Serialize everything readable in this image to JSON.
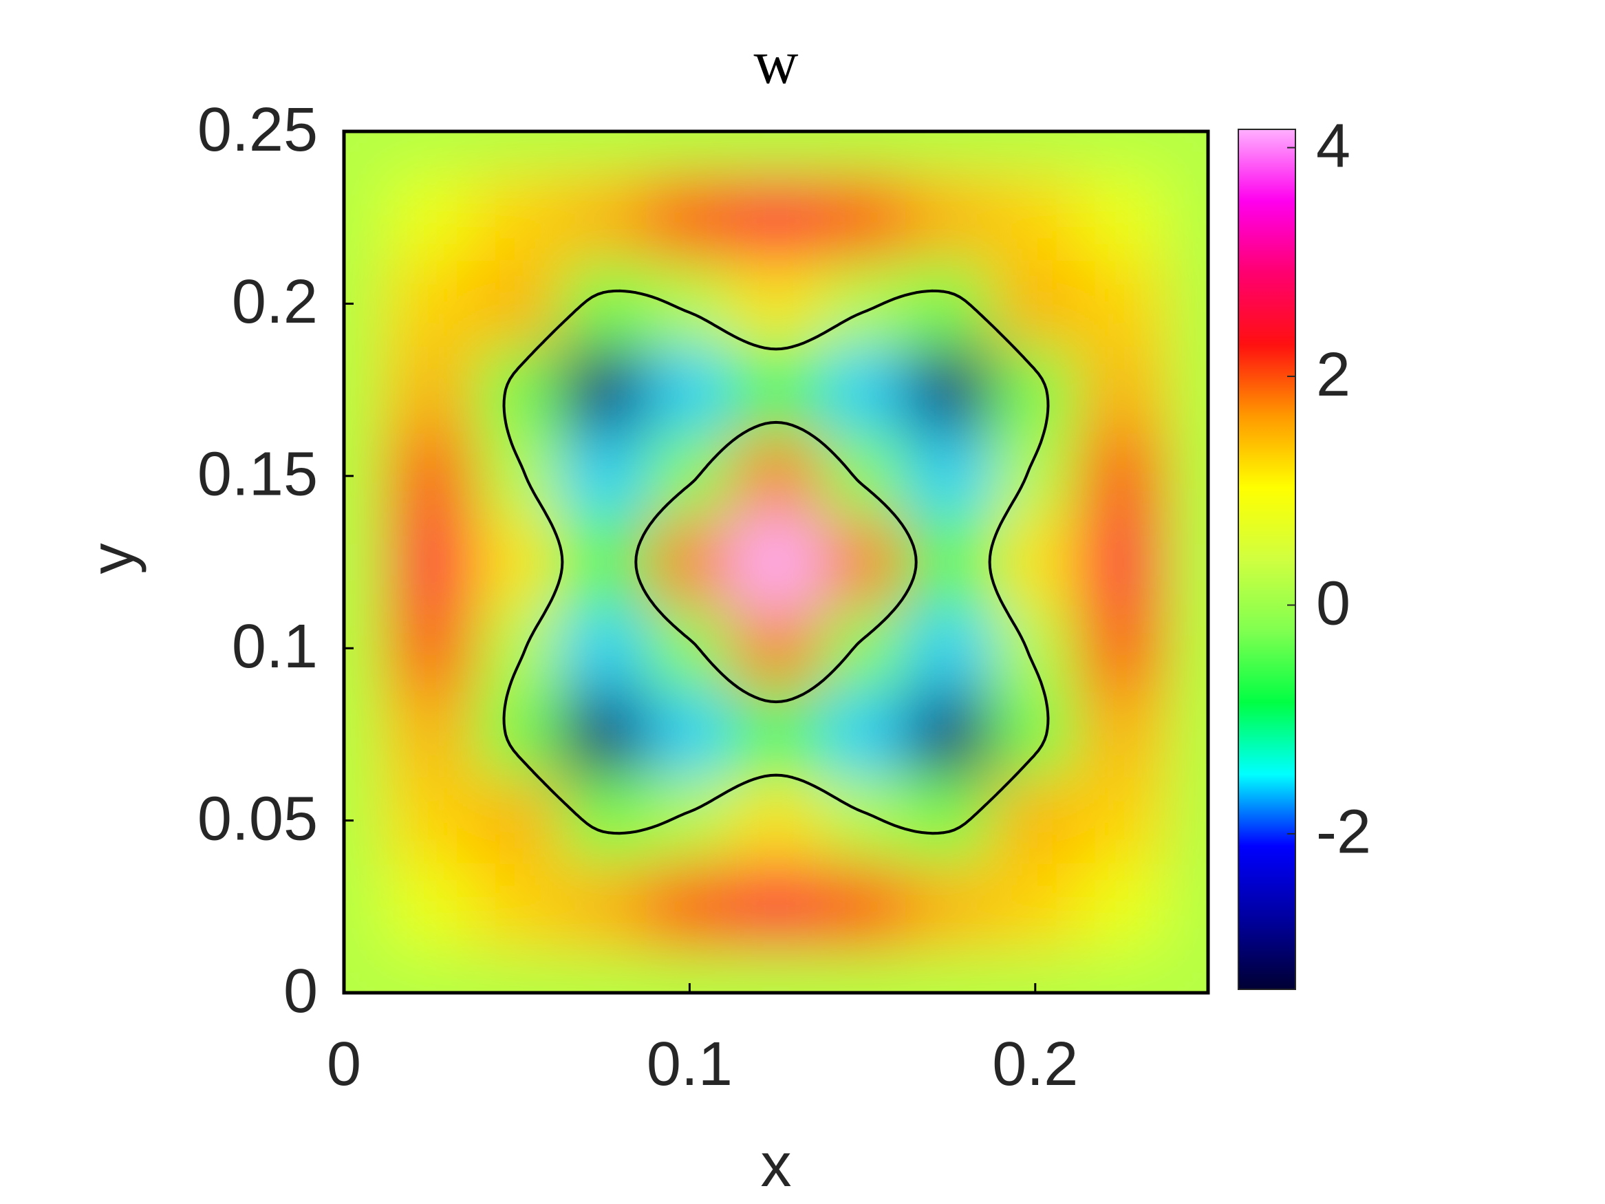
{
  "chart_data": {
    "type": "heatmap",
    "title": "w",
    "xlabel": "x",
    "ylabel": "y",
    "x": [
      0,
      0.025,
      0.05,
      0.075,
      0.1,
      0.125,
      0.15,
      0.175,
      0.2,
      0.225,
      0.25
    ],
    "y": [
      0,
      0.025,
      0.05,
      0.075,
      0.1,
      0.125,
      0.15,
      0.175,
      0.2,
      0.225,
      0.25
    ],
    "z": [
      [
        0.2,
        0.2,
        0.2,
        0.2,
        0.2,
        0.2,
        0.2,
        0.2,
        0.2,
        0.2,
        0.2
      ],
      [
        0.2,
        0.8,
        1.3,
        1.5,
        2.0,
        2.6,
        2.0,
        1.5,
        1.3,
        0.8,
        0.2
      ],
      [
        0.2,
        1.3,
        1.5,
        -0.3,
        0.2,
        1.2,
        0.2,
        -0.3,
        1.5,
        1.3,
        0.2
      ],
      [
        0.2,
        1.5,
        -0.3,
        -3.0,
        -1.6,
        -0.6,
        -1.6,
        -3.0,
        -0.3,
        1.5,
        0.2
      ],
      [
        0.2,
        2.0,
        0.2,
        -1.6,
        -0.2,
        1.8,
        -0.2,
        -1.6,
        0.2,
        2.0,
        0.2
      ],
      [
        0.2,
        2.6,
        1.2,
        -0.6,
        1.8,
        4.2,
        1.8,
        -0.6,
        1.2,
        2.6,
        0.2
      ],
      [
        0.2,
        2.0,
        0.2,
        -1.6,
        -0.2,
        1.8,
        -0.2,
        -1.6,
        0.2,
        2.0,
        0.2
      ],
      [
        0.2,
        1.5,
        -0.3,
        -3.0,
        -1.6,
        -0.6,
        -1.6,
        -3.0,
        -0.3,
        1.5,
        0.2
      ],
      [
        0.2,
        1.3,
        1.5,
        -0.3,
        0.2,
        1.2,
        0.2,
        -0.3,
        1.5,
        1.3,
        0.2
      ],
      [
        0.2,
        0.8,
        1.3,
        1.5,
        2.0,
        2.6,
        2.0,
        1.5,
        1.3,
        0.8,
        0.2
      ],
      [
        0.2,
        0.2,
        0.2,
        0.2,
        0.2,
        0.2,
        0.2,
        0.2,
        0.2,
        0.2,
        0.2
      ]
    ],
    "xlim": [
      0,
      0.25
    ],
    "ylim": [
      0,
      0.25
    ],
    "xticks": [
      0,
      0.1,
      0.2
    ],
    "yticks": [
      0,
      0.05,
      0.1,
      0.15,
      0.2,
      0.25
    ],
    "colorbar": {
      "clim": [
        -3.36,
        4.16
      ],
      "ticks": [
        -2,
        0,
        2,
        4
      ],
      "colormap": [
        "#000033",
        "#0000a0",
        "#0000ff",
        "#00ffff",
        "#00ff44",
        "#80ff50",
        "#d0ff40",
        "#ffff00",
        "#ff9900",
        "#ff1010",
        "#ff0070",
        "#ff00ee",
        "#ffb0ff"
      ]
    },
    "contour_levels": [
      0
    ],
    "contour_color": "#000000"
  }
}
